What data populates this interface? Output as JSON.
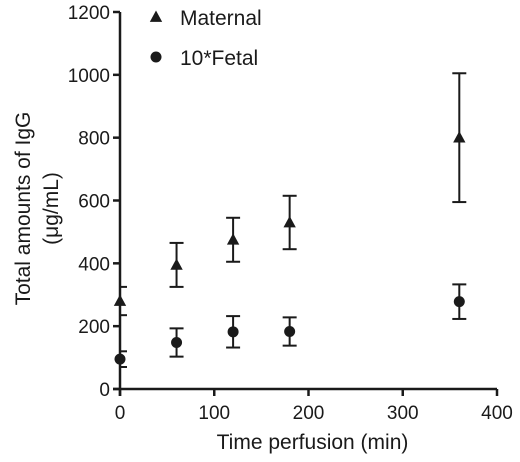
{
  "chart_data": {
    "type": "scatter",
    "title": "",
    "xlabel": "Time perfusion (min)",
    "ylabel": "Total amounts of IgG",
    "ylabel_unit": "(μg/mL)",
    "xlim": [
      0,
      400
    ],
    "ylim": [
      0,
      1200
    ],
    "xticks": [
      0,
      100,
      200,
      300,
      400
    ],
    "yticks": [
      0,
      200,
      400,
      600,
      800,
      1000,
      1200
    ],
    "grid": false,
    "legend_position": "top-left",
    "series": [
      {
        "name": "Maternal",
        "marker": "triangle",
        "x": [
          0,
          60,
          120,
          180,
          360
        ],
        "y": [
          280,
          395,
          475,
          530,
          800
        ],
        "err": [
          45,
          70,
          70,
          85,
          205
        ]
      },
      {
        "name": "10*Fetal",
        "marker": "circle",
        "x": [
          0,
          60,
          120,
          180,
          360
        ],
        "y": [
          95,
          148,
          182,
          183,
          278
        ],
        "err": [
          25,
          45,
          50,
          45,
          55
        ]
      }
    ]
  }
}
